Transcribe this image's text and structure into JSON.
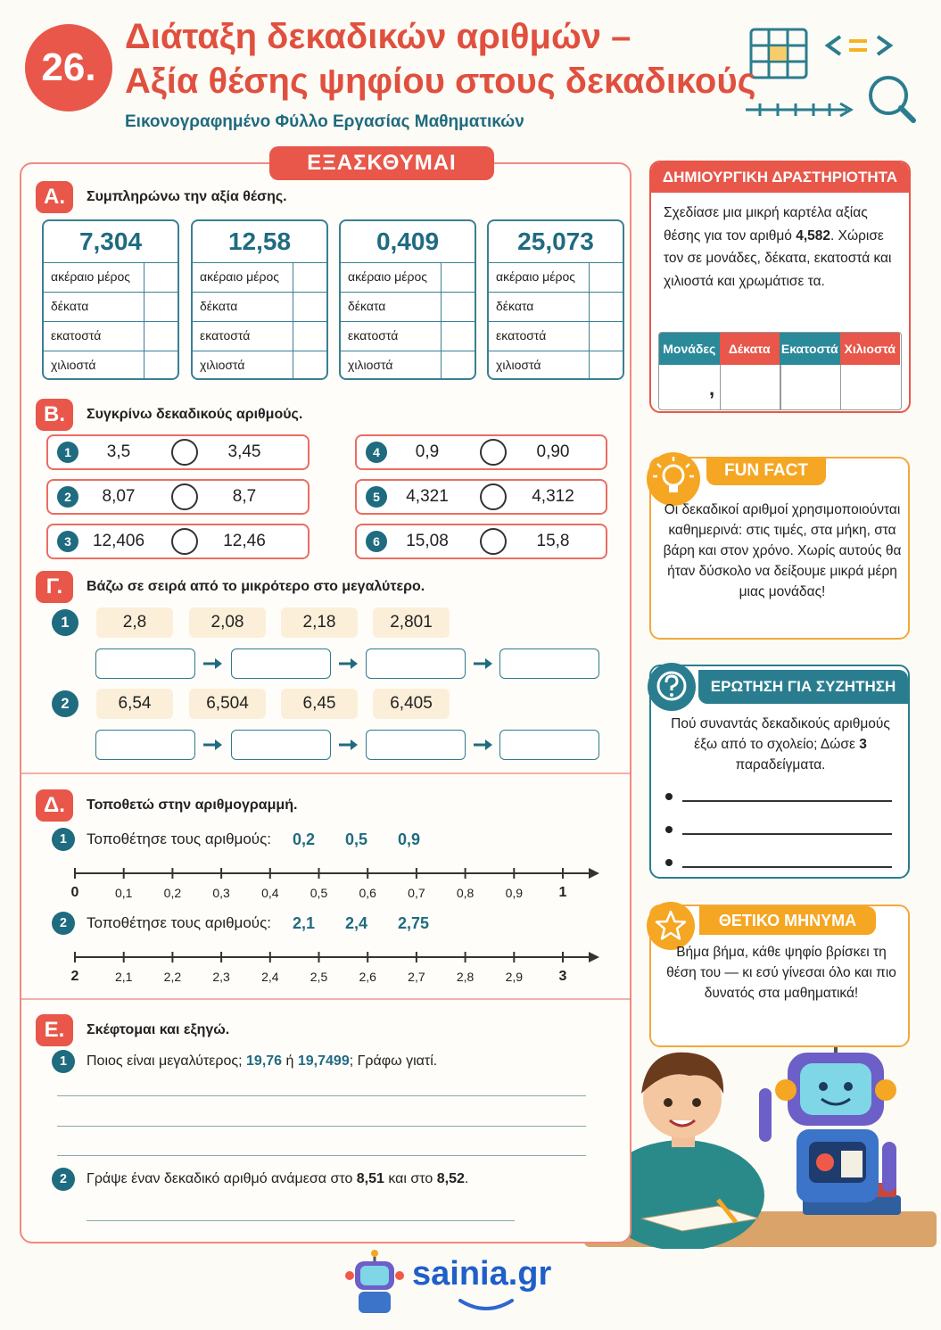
{
  "header": {
    "number": "26.",
    "title_lines": [
      "Διάταξη δεκαδικών αριθμών –",
      "Αξία θέσης ψηφίου στους δεκαδικούς"
    ],
    "subtitle": "Εικονογραφημένο Φύλλο Εργασίας Μαθηματικών"
  },
  "worksheet": {
    "banner": "ΕΞΑΣΚΘΥΜΑΙ",
    "section_a": {
      "letter": "Α.",
      "instruction": "Συμπληρώνω την αξία θέσης.",
      "cards": [
        {
          "number": "7,304",
          "rows": [
            "ακέραιο μέρος",
            "δέκατα",
            "εκατοστά",
            "χιλιοστά"
          ]
        },
        {
          "number": "12,58",
          "rows": [
            "ακέραιο μέρος",
            "δέκατα",
            "εκατοστά",
            "χιλιοστά"
          ]
        },
        {
          "number": "0,409",
          "rows": [
            "ακέραιο μέρος",
            "δέκατα",
            "εκατοστά",
            "χιλιοστά"
          ]
        },
        {
          "number": "25,073",
          "rows": [
            "ακέραιο μέρος",
            "δέκατα",
            "εκατοστά",
            "χιλιοστά"
          ]
        }
      ]
    },
    "section_b": {
      "letter": "Β.",
      "instruction": "Συγκρίνω δεκαδικούς αριθμούς.",
      "items": [
        {
          "index": "1",
          "left": "3,5",
          "right": "3,45"
        },
        {
          "index": "2",
          "left": "8,07",
          "right": "8,7"
        },
        {
          "index": "3",
          "left": "12,406",
          "right": "12,46"
        },
        {
          "index": "4",
          "left": "0,9",
          "right": "0,90"
        },
        {
          "index": "5",
          "left": "4,321",
          "right": "4,312"
        },
        {
          "index": "6",
          "left": "15,08",
          "right": "15,8"
        }
      ]
    },
    "section_c": {
      "letter": "Γ.",
      "instruction": "Βάζω σε σειρά από το μικρότερο στο μεγαλύτερο.",
      "rows": [
        {
          "index": "1",
          "numbers": [
            "2,8",
            "2,08",
            "2,18",
            "2,801"
          ]
        },
        {
          "index": "2",
          "numbers": [
            "6,54",
            "6,504",
            "6,45",
            "6,405"
          ]
        }
      ]
    },
    "section_d": {
      "letter": "Δ.",
      "instruction": "Τοποθετώ στην αριθμογραμμή.",
      "tasks": [
        {
          "index": "1",
          "prompt": "Τοποθέτησε τους αριθμούς:",
          "numbers": [
            "0,2",
            "0,5",
            "0,9"
          ],
          "ticks": [
            "0",
            "0,1",
            "0,2",
            "0,3",
            "0,4",
            "0,5",
            "0,6",
            "0,7",
            "0,8",
            "0,9",
            "1"
          ]
        },
        {
          "index": "2",
          "prompt": "Τοποθέτησε τους αριθμούς:",
          "numbers": [
            "2,1",
            "2,4",
            "2,75"
          ],
          "ticks": [
            "2",
            "2,1",
            "2,2",
            "2,3",
            "2,4",
            "2,5",
            "2,6",
            "2,7",
            "2,8",
            "2,9",
            "3"
          ]
        }
      ]
    },
    "section_e": {
      "letter": "Ε.",
      "instruction": "Σκέφτομαι και εξηγώ.",
      "items": [
        {
          "index": "1",
          "parts": [
            "Ποιος είναι μεγαλύτερος; ",
            "19,76",
            " ή ",
            "19,7499",
            "; Γράφω γιατί."
          ]
        },
        {
          "index": "2",
          "parts": [
            "Γράψε έναν δεκαδικό αριθμό ανάμεσα στο ",
            "8,51",
            " και στο ",
            "8,52",
            "."
          ]
        }
      ]
    }
  },
  "sidebar": {
    "creative": {
      "title": "ΔΗΜΙΟΥΡΓΙΚΗ ΔΡΑΣΤΗΡΙΟΤΗΤΑ",
      "text_parts": [
        "Σχεδίασε μια μικρή καρτέλα αξίας θέσης για τον αριθμό ",
        "4,582",
        ". Χώρισε τον σε μονάδες, δέκατα, εκατοστά και χιλιοστά και χρωμάτισε τα."
      ],
      "table_headers": [
        "Μονάδες",
        "Δέκατα",
        "Εκατοστά",
        "Χιλιοστά"
      ],
      "separator": ","
    },
    "fun_fact": {
      "title": "FUN FACT",
      "text": "Οι δεκαδικοί αριθμοί χρησιμοποιούνται καθημερινά: στις τιμές, στα μήκη, στα βάρη και στον χρόνο. Χωρίς αυτούς θα ήταν δύσκολο να δείξουμε μικρά μέρη μιας μονάδας!"
    },
    "question": {
      "title": "ΕΡΩΤΗΣΗ ΓΙΑ ΣΥΖΗΤΗΣΗ",
      "text_parts": [
        "Πού συναντάς δεκαδικούς αριθμούς έξω από το σχολείο; Δώσε ",
        "3",
        " παραδείγματα."
      ]
    },
    "positive": {
      "title": "ΘΕΤΙΚΟ ΜΗΝΥΜΑ",
      "text": "Βήμα βήμα, κάθε ψηφίο βρίσκει τη θέση του — κι εσύ γίνεσαι όλο και πιο δυνατός στα μαθηματικά!"
    }
  },
  "footer": {
    "brand": "sainia.gr"
  }
}
